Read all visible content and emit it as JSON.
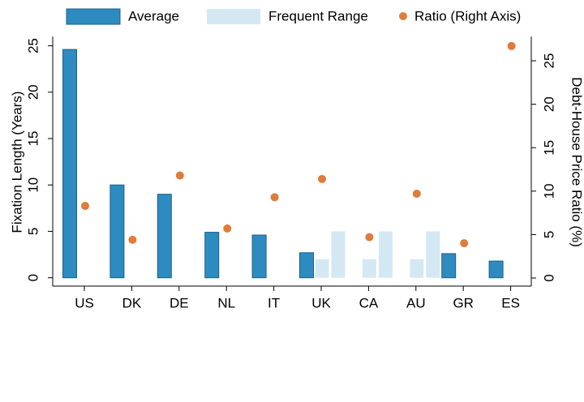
{
  "chart_data": {
    "type": "bar",
    "categories": [
      "US",
      "DK",
      "DE",
      "NL",
      "IT",
      "UK",
      "CA",
      "AU",
      "GR",
      "ES"
    ],
    "ylabel": "Fixation Length (Years)",
    "y2label": "Debt-House Price Ratio (%)",
    "ylim": [
      -0.9,
      26
    ],
    "yticks": [
      0,
      5,
      10,
      15,
      20,
      25
    ],
    "y2lim": [
      -0.93,
      27.8
    ],
    "y2ticks": [
      0,
      5,
      10,
      15,
      20,
      25
    ],
    "series": [
      {
        "name": "Average",
        "type": "bar",
        "color": "#2e8bc0",
        "values": [
          24.6,
          10.0,
          9.0,
          4.9,
          4.6,
          2.7,
          null,
          null,
          2.6,
          1.8
        ]
      },
      {
        "name": "Frequent Range",
        "type": "range",
        "color": "#d4e8f4",
        "low": [
          null,
          null,
          null,
          null,
          null,
          2,
          2,
          2,
          null,
          null
        ],
        "high": [
          null,
          null,
          null,
          null,
          null,
          5,
          5,
          5,
          null,
          null
        ]
      },
      {
        "name": "Ratio (Right Axis)",
        "type": "scatter",
        "axis": "y2",
        "color": "#e07b39",
        "values": [
          8.3,
          4.4,
          11.8,
          5.7,
          9.3,
          11.4,
          4.7,
          9.7,
          4.0,
          26.7
        ]
      }
    ]
  }
}
